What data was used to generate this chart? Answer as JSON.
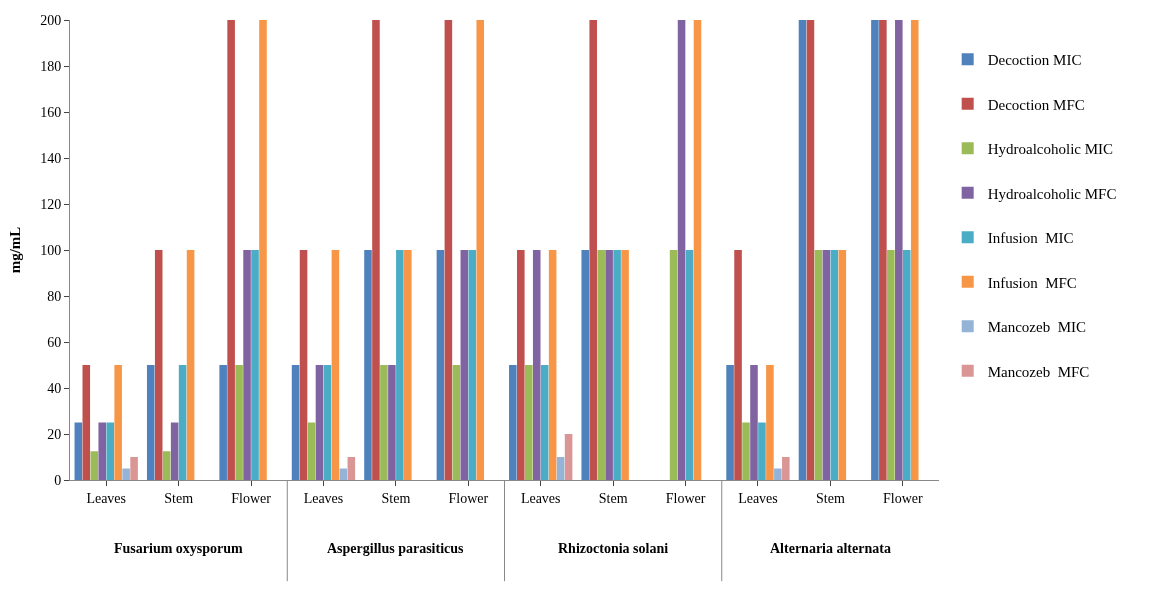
{
  "chart_data": {
    "type": "bar",
    "ylabel": "mg/mL",
    "categories": [
      "Leaves",
      "Stem",
      "Flower",
      "Leaves",
      "Stem",
      "Flower",
      "Leaves",
      "Stem",
      "Flower",
      "Leaves",
      "Stem",
      "Flower"
    ],
    "annotations": [
      "Fusarium oxysporum",
      "Aspergillus parasiticus",
      "Rhizoctonia solani",
      "Alternaria alternata"
    ],
    "series": [
      {
        "name": "Decoction MIC",
        "color": "#4f81bd",
        "values": [
          25,
          50,
          50,
          50,
          100,
          100,
          50,
          100,
          0,
          50,
          200,
          200
        ]
      },
      {
        "name": "Decoction MFC",
        "color": "#c0504d",
        "values": [
          50,
          100,
          200,
          100,
          200,
          200,
          100,
          200,
          0,
          100,
          200,
          200
        ]
      },
      {
        "name": "Hydroalcoholic MIC",
        "color": "#9bbb59",
        "values": [
          12.5,
          12.5,
          50,
          25,
          50,
          50,
          50,
          100,
          100,
          25,
          100,
          100
        ]
      },
      {
        "name": "Hydroalcoholic MFC",
        "color": "#8064a2",
        "values": [
          25,
          25,
          100,
          50,
          50,
          100,
          100,
          100,
          200,
          50,
          100,
          200
        ]
      },
      {
        "name": "Infusion  MIC",
        "color": "#4bacc6",
        "values": [
          25,
          50,
          100,
          50,
          100,
          100,
          50,
          100,
          100,
          25,
          100,
          100
        ]
      },
      {
        "name": "Infusion  MFC",
        "color": "#f79646",
        "values": [
          50,
          100,
          200,
          100,
          100,
          200,
          100,
          100,
          200,
          50,
          100,
          200
        ]
      },
      {
        "name": "Mancozeb  MIC",
        "color": "#95b3d7",
        "values": [
          5,
          0,
          0,
          5,
          0,
          0,
          10,
          0,
          0,
          5,
          0,
          0
        ]
      },
      {
        "name": "Mancozeb  MFC",
        "color": "#d99694",
        "values": [
          10,
          0,
          0,
          10,
          0,
          0,
          20,
          0,
          0,
          10,
          0,
          0
        ]
      }
    ],
    "ylim": [
      0,
      200
    ],
    "yticks": [
      0,
      20,
      40,
      60,
      80,
      100,
      120,
      140,
      160,
      180,
      200
    ],
    "grid": false,
    "legend": "right"
  }
}
